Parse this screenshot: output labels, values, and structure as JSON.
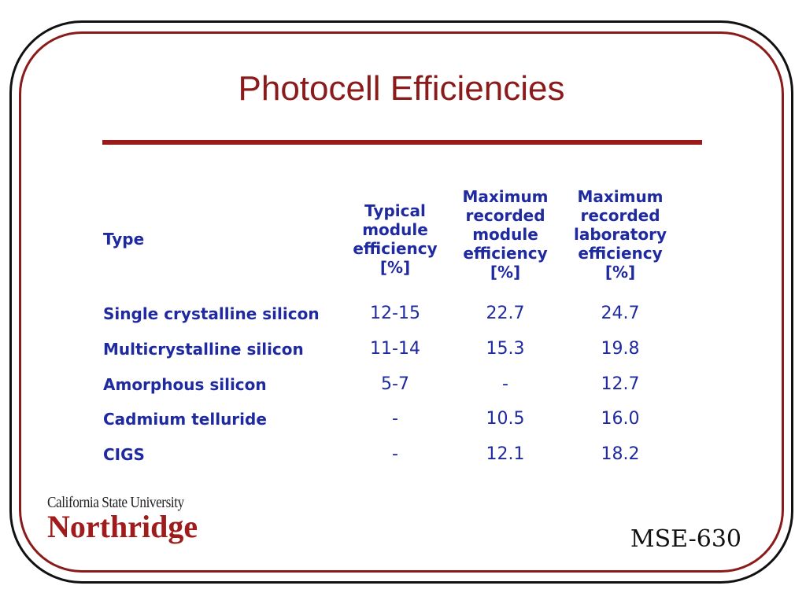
{
  "slide": {
    "title": "Photocell Efficiencies",
    "logo_line1": "California State University",
    "logo_line2": "Northridge",
    "course": "MSE-630"
  },
  "table": {
    "headers": [
      [
        "Type"
      ],
      [
        "Typical",
        "module",
        "efficiency",
        "[%]"
      ],
      [
        "Maximum",
        "recorded",
        "module",
        "efficiency",
        "[%]"
      ],
      [
        "Maximum",
        "recorded",
        "laboratory",
        "efficiency",
        "[%]"
      ]
    ],
    "rows": [
      {
        "type": "Single crystalline silicon",
        "typical": "12-15",
        "max_module": "22.7",
        "max_lab": "24.7"
      },
      {
        "type": "Multicrystalline silicon",
        "typical": "11-14",
        "max_module": "15.3",
        "max_lab": "19.8"
      },
      {
        "type": "Amorphous silicon",
        "typical": "5-7",
        "max_module": "-",
        "max_lab": "12.7"
      },
      {
        "type": "Cadmium telluride",
        "typical": "-",
        "max_module": "10.5",
        "max_lab": "16.0"
      },
      {
        "type": "CIGS",
        "typical": "-",
        "max_module": "12.1",
        "max_lab": "18.2"
      }
    ]
  }
}
